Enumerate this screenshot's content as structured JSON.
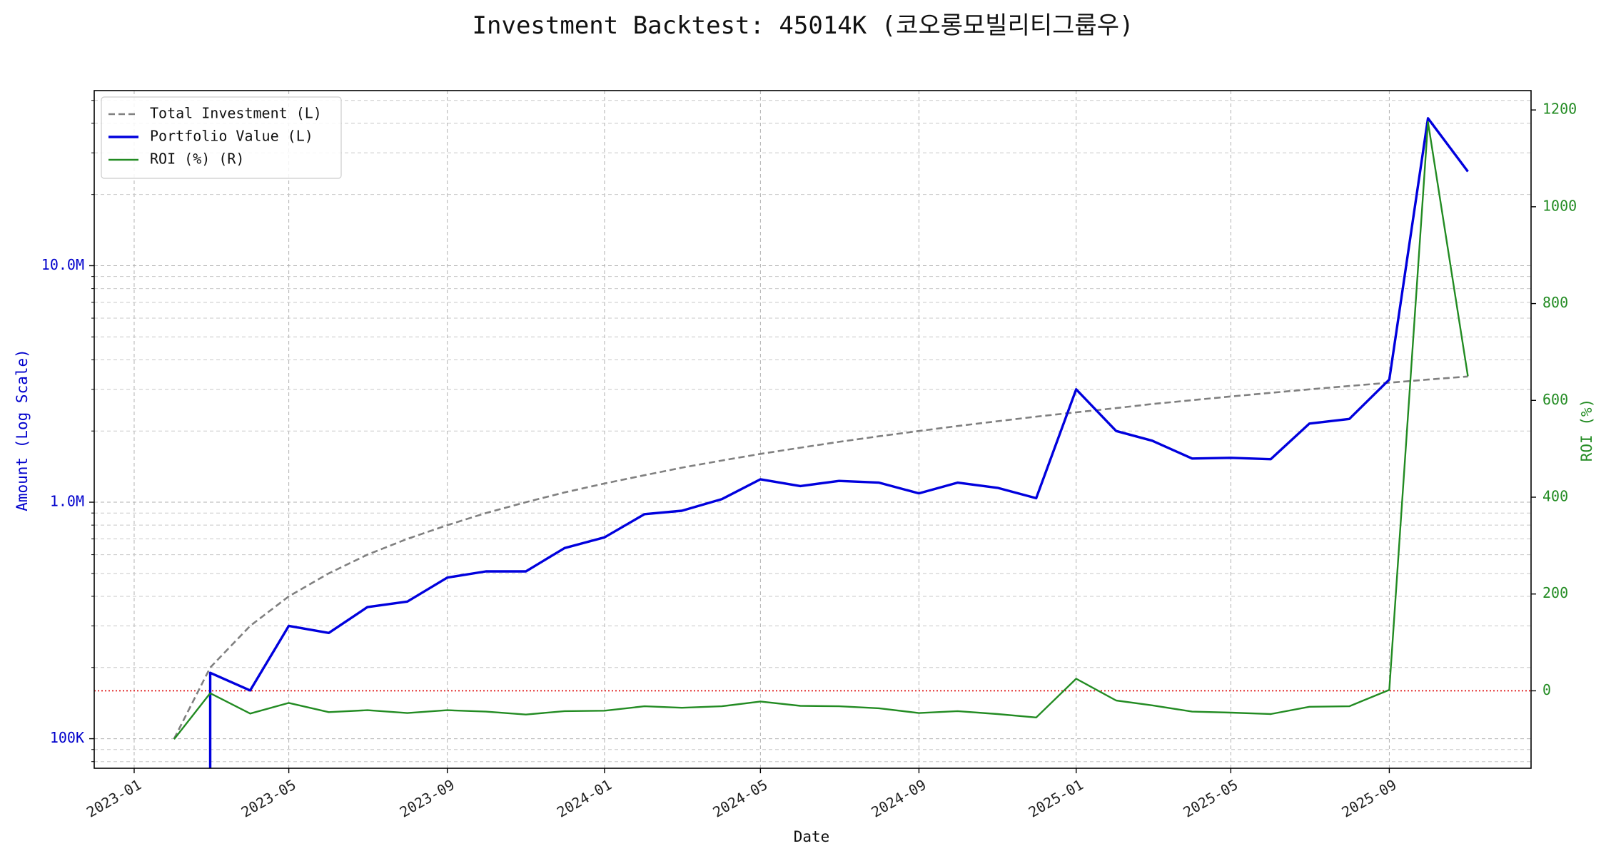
{
  "chart_data": {
    "type": "line",
    "title": "Investment Backtest: 45014K (코오롱모빌리티그룹우)",
    "xlabel": "Date",
    "ylabel_left": "Amount (Log Scale)",
    "ylabel_right": "ROI (%)",
    "x_ticks": [
      "2023-01",
      "2023-05",
      "2023-09",
      "2024-01",
      "2024-05",
      "2024-09",
      "2025-01",
      "2025-05",
      "2025-09"
    ],
    "y_left_ticks": [
      "100K",
      "1.0M",
      "10.0M"
    ],
    "y_right_ticks": [
      "0",
      "200",
      "400",
      "600",
      "800",
      "1000",
      "1200"
    ],
    "y_left_scale": "log",
    "y_left_range": [
      75000,
      55000000
    ],
    "y_right_range": [
      -160,
      1240
    ],
    "x_range": [
      "2022-12-01",
      "2025-12-20"
    ],
    "grid": true,
    "legend_position": "top-left",
    "x": [
      "2023-02",
      "2023-03",
      "2023-04",
      "2023-05",
      "2023-06",
      "2023-07",
      "2023-08",
      "2023-09",
      "2023-10",
      "2023-11",
      "2023-12",
      "2024-01",
      "2024-02",
      "2024-03",
      "2024-04",
      "2024-05",
      "2024-06",
      "2024-07",
      "2024-08",
      "2024-09",
      "2024-10",
      "2024-11",
      "2024-12",
      "2025-01",
      "2025-02",
      "2025-03",
      "2025-04",
      "2025-05",
      "2025-06",
      "2025-07",
      "2025-08",
      "2025-09",
      "2025-10",
      "2025-11"
    ],
    "series": [
      {
        "name": "Total Investment (L)",
        "axis": "left",
        "style": "dashed",
        "color": "#808080",
        "values": [
          100000,
          200000,
          300000,
          400000,
          500000,
          600000,
          700000,
          800000,
          900000,
          1000000,
          1100000,
          1200000,
          1300000,
          1400000,
          1500000,
          1600000,
          1700000,
          1800000,
          1900000,
          2000000,
          2100000,
          2200000,
          2300000,
          2400000,
          2500000,
          2600000,
          2700000,
          2800000,
          2900000,
          3000000,
          3100000,
          3200000,
          3300000,
          3400000
        ]
      },
      {
        "name": "Portfolio Value (L)",
        "axis": "left",
        "style": "solid",
        "color": "#0000dd",
        "values": [
          null,
          190000,
          160000,
          300000,
          280000,
          360000,
          380000,
          480000,
          510000,
          510000,
          640000,
          710000,
          890000,
          920000,
          1030000,
          1250000,
          1170000,
          1230000,
          1210000,
          1090000,
          1210000,
          1150000,
          1040000,
          3000000,
          2000000,
          1820000,
          1530000,
          1540000,
          1520000,
          2150000,
          2250000,
          3300000,
          42000000,
          25000000
        ]
      },
      {
        "name": "ROI (%) (R)",
        "axis": "right",
        "style": "solid",
        "color": "#228b22",
        "values": [
          -100,
          -5,
          -47,
          -25,
          -44,
          -40,
          -46,
          -40,
          -43,
          -49,
          -42,
          -41,
          -32,
          -35,
          -32,
          -22,
          -31,
          -32,
          -36,
          -46,
          -42,
          -48,
          -55,
          25,
          -20,
          -30,
          -43,
          -45,
          -48,
          -33,
          -32,
          2,
          1175,
          650
        ]
      }
    ],
    "reference_lines": [
      {
        "axis": "right",
        "value": 0,
        "color": "#dd0000",
        "style": "dotted"
      }
    ]
  }
}
